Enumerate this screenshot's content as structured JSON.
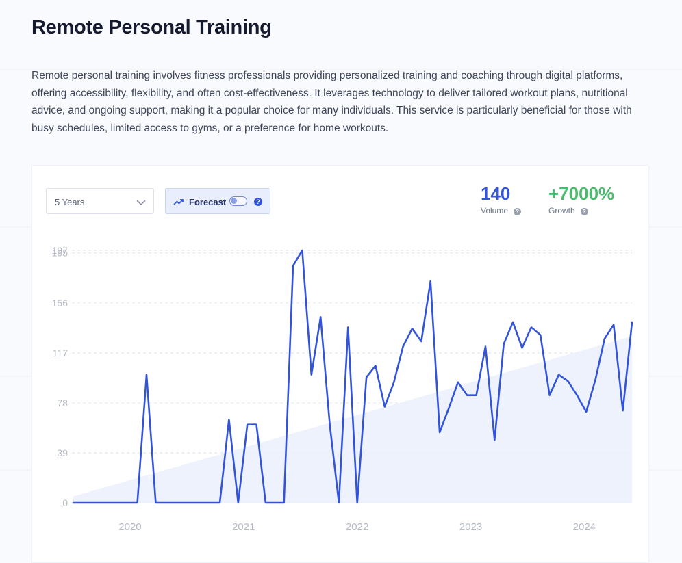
{
  "page": {
    "title": "Remote Personal Training",
    "description": "Remote personal training involves fitness professionals providing personalized training and coaching through digital platforms, offering accessibility, flexibility, and often cost-effectiveness. It leverages technology to deliver tailored workout plans, nutritional advice, and ongoing support, making it a popular choice for many individuals. This service is particularly beneficial for those with busy schedules, limited access to gyms, or a preference for home workouts."
  },
  "controls": {
    "range_select": "5 Years",
    "forecast_label": "Forecast",
    "forecast_enabled": false
  },
  "metrics": {
    "volume_value": "140",
    "volume_label": "Volume",
    "growth_value": "+7000%",
    "growth_label": "Growth"
  },
  "colors": {
    "line": "#3354d8",
    "trend_fill": "#eaf0fb",
    "volume": "#3354d8",
    "growth": "#4cbb6e"
  },
  "chart_data": {
    "type": "line",
    "title": "",
    "xlabel": "",
    "ylabel": "",
    "x_start": 2019.5,
    "x_end": 2024.42,
    "ylim": [
      0,
      197
    ],
    "y_ticks": [
      0,
      39,
      78,
      117,
      156,
      195,
      197
    ],
    "x_ticks": [
      "2020",
      "2021",
      "2022",
      "2023",
      "2024"
    ],
    "grid": true,
    "series": [
      {
        "values": [
          0,
          0,
          0,
          0,
          0,
          0,
          0,
          0,
          100,
          0,
          0,
          0,
          0,
          0,
          0,
          0,
          0,
          65,
          0,
          61,
          61,
          0,
          0,
          0,
          185,
          197,
          100,
          145,
          61,
          0,
          137,
          0,
          98,
          107,
          75,
          94,
          122,
          136,
          126,
          173,
          55,
          74,
          94,
          84,
          84,
          122,
          49,
          124,
          141,
          121,
          137,
          131,
          84,
          100,
          95,
          84,
          71,
          96,
          128,
          139,
          72,
          141
        ]
      }
    ],
    "trend": {
      "start": 5,
      "end": 130
    }
  }
}
